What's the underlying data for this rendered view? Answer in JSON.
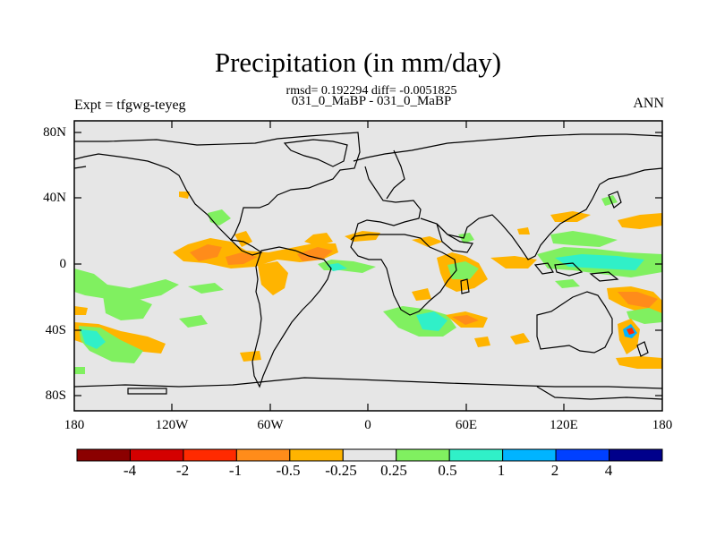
{
  "title": "Precipitation (in mm/day)",
  "stats_line": "rmsd= 0.192294 diff= -0.0051825",
  "case_line": "031_0_MaBP - 031_0_MaBP",
  "expt_label": "Expt = tfgwg-teyeg",
  "season_label": "ANN",
  "y_ticks": [
    "80N",
    "40N",
    "0",
    "40S",
    "80S"
  ],
  "x_ticks": [
    "180",
    "120W",
    "60W",
    "0",
    "60E",
    "120E",
    "180"
  ],
  "colorbar": {
    "labels": [
      "-4",
      "-2",
      "-1",
      "-0.5",
      "-0.25",
      "0.25",
      "0.5",
      "1",
      "2",
      "4"
    ],
    "colors": [
      "#8b0000",
      "#d40000",
      "#ff2a00",
      "#ff8c1a",
      "#ffb400",
      "#e6e6e6",
      "#80f060",
      "#30f0c8",
      "#00b4ff",
      "#0040ff",
      "#00008b"
    ]
  },
  "colors": {
    "background_fill": "#e6e6e6",
    "coast": "#000000",
    "frame": "#000000"
  }
}
